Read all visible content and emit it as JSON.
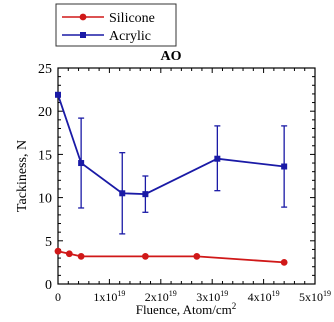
{
  "chart_data": {
    "type": "line",
    "title": "AO",
    "xlabel": "Fluence, Atom/cm",
    "xlabel_superscript": "2",
    "ylabel": "Tackiness, N",
    "xlim": [
      0,
      5e+19
    ],
    "ylim": [
      0,
      25
    ],
    "x_ticks": [
      {
        "value": 0,
        "mantissa": "0",
        "exponent": ""
      },
      {
        "value": 1e+19,
        "mantissa": "1x10",
        "exponent": "19"
      },
      {
        "value": 2e+19,
        "mantissa": "2x10",
        "exponent": "19"
      },
      {
        "value": 3e+19,
        "mantissa": "3x10",
        "exponent": "19"
      },
      {
        "value": 4e+19,
        "mantissa": "4x10",
        "exponent": "19"
      },
      {
        "value": 5e+19,
        "mantissa": "5x10",
        "exponent": "19"
      }
    ],
    "y_ticks": [
      {
        "value": 0,
        "label": "0"
      },
      {
        "value": 5,
        "label": "5"
      },
      {
        "value": 10,
        "label": "10"
      },
      {
        "value": 15,
        "label": "15"
      },
      {
        "value": 20,
        "label": "20"
      },
      {
        "value": 25,
        "label": "25"
      }
    ],
    "grid": false,
    "legend_position": "top-left-outside",
    "series": [
      {
        "name": "Silicone",
        "color": "#d01818",
        "marker": "circle",
        "points": [
          {
            "x": 0,
            "y": 3.8
          },
          {
            "x": 2.2e+18,
            "y": 3.5
          },
          {
            "x": 4.5e+18,
            "y": 3.2
          },
          {
            "x": 1.7e+19,
            "y": 3.2
          },
          {
            "x": 2.7e+19,
            "y": 3.2
          },
          {
            "x": 4.4e+19,
            "y": 2.5
          }
        ]
      },
      {
        "name": "Acrylic",
        "color": "#1a1aa6",
        "marker": "square",
        "points": [
          {
            "x": 0,
            "y": 21.9,
            "err_low": 21.9,
            "err_high": 21.9
          },
          {
            "x": 4.5e+18,
            "y": 14.0,
            "err_low": 8.8,
            "err_high": 19.2
          },
          {
            "x": 1.25e+19,
            "y": 10.5,
            "err_low": 5.8,
            "err_high": 15.2
          },
          {
            "x": 1.7e+19,
            "y": 10.4,
            "err_low": 8.3,
            "err_high": 12.5
          },
          {
            "x": 3.1e+19,
            "y": 14.5,
            "err_low": 10.8,
            "err_high": 18.3
          },
          {
            "x": 4.4e+19,
            "y": 13.6,
            "err_low": 8.9,
            "err_high": 18.3
          }
        ]
      }
    ]
  }
}
